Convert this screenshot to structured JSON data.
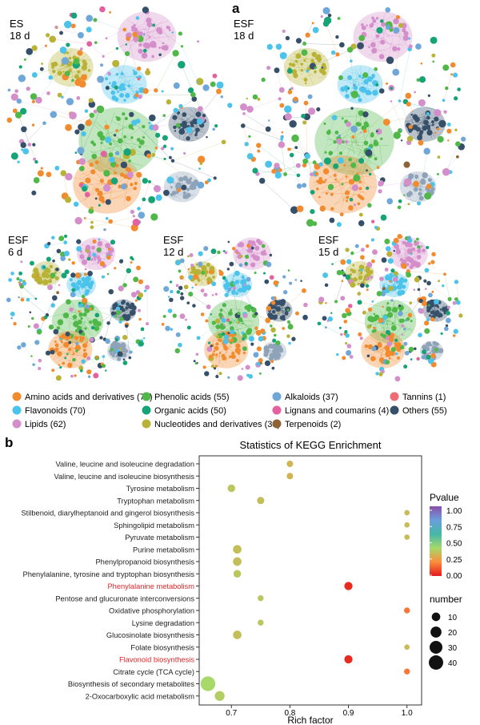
{
  "panel_a": {
    "letter": "a",
    "networks": [
      {
        "line1": "ES",
        "line2": "18 d"
      },
      {
        "line1": "ESF",
        "line2": "18 d"
      },
      {
        "line1": "ESF",
        "line2": "6 d"
      },
      {
        "line1": "ESF",
        "line2": "12 d"
      },
      {
        "line1": "ESF",
        "line2": "15 d"
      }
    ],
    "legend": [
      {
        "label": "Amino acids and derivatives (73)",
        "color": "#f28a2e"
      },
      {
        "label": "Flavonoids (70)",
        "color": "#4cc3ea"
      },
      {
        "label": "Lipids (62)",
        "color": "#d48fcb"
      },
      {
        "label": "Phenolic acids (55)",
        "color": "#4fb848"
      },
      {
        "label": "Organic acids (50)",
        "color": "#16a477"
      },
      {
        "label": "Nucleotides and derivatives (38)",
        "color": "#b8b336"
      },
      {
        "label": "Alkaloids (37)",
        "color": "#6fa7d8"
      },
      {
        "label": "Lignans and coumarins (4)",
        "color": "#e5609f"
      },
      {
        "label": "Terpenoids (2)",
        "color": "#8e6437"
      },
      {
        "label": "Tannins (1)",
        "color": "#ef6b74"
      },
      {
        "label": "Others (55)",
        "color": "#36506a"
      }
    ]
  },
  "panel_b": {
    "letter": "b"
  },
  "chart_data": {
    "type": "scatter",
    "title": "Statistics of KEGG Enrichment",
    "xlabel": "Rich factor",
    "ylabel": "",
    "xlim": [
      0.645,
      1.025
    ],
    "xticks": [
      0.7,
      0.8,
      0.9,
      1.0
    ],
    "xtick_labels": [
      "0.7",
      "0.8",
      "0.9",
      "1.0"
    ],
    "grid": false,
    "highlight_color": "#e0262b",
    "pathways": [
      {
        "name": "Valine, leucine and isoleucine degradation",
        "rich_factor": 0.8,
        "pvalue": 0.3,
        "number": 4,
        "highlight": false
      },
      {
        "name": "Valine, leucine and isoleucine biosynthesis",
        "rich_factor": 0.8,
        "pvalue": 0.3,
        "number": 4,
        "highlight": false
      },
      {
        "name": "Tyrosine metabolism",
        "rich_factor": 0.7,
        "pvalue": 0.35,
        "number": 7,
        "highlight": false
      },
      {
        "name": "Tryptophan metabolism",
        "rich_factor": 0.75,
        "pvalue": 0.33,
        "number": 6,
        "highlight": false
      },
      {
        "name": "Stilbenoid, diarylheptanoid and gingerol biosynthesis",
        "rich_factor": 1.0,
        "pvalue": 0.32,
        "number": 2,
        "highlight": false
      },
      {
        "name": "Sphingolipid metabolism",
        "rich_factor": 1.0,
        "pvalue": 0.32,
        "number": 2,
        "highlight": false
      },
      {
        "name": "Pyruvate metabolism",
        "rich_factor": 1.0,
        "pvalue": 0.32,
        "number": 2,
        "highlight": false
      },
      {
        "name": "Purine metabolism",
        "rich_factor": 0.71,
        "pvalue": 0.33,
        "number": 10,
        "highlight": false
      },
      {
        "name": "Phenylpropanoid biosynthesis",
        "rich_factor": 0.71,
        "pvalue": 0.33,
        "number": 10,
        "highlight": false
      },
      {
        "name": "Phenylalanine, tyrosine and tryptophan biosynthesis",
        "rich_factor": 0.71,
        "pvalue": 0.35,
        "number": 7,
        "highlight": false
      },
      {
        "name": "Phenylalanine metabolism",
        "rich_factor": 0.9,
        "pvalue": 0.03,
        "number": 9,
        "highlight": true
      },
      {
        "name": "Pentose and glucuronate interconversions",
        "rich_factor": 0.75,
        "pvalue": 0.35,
        "number": 3,
        "highlight": false
      },
      {
        "name": "Oxidative phosphorylation",
        "rich_factor": 1.0,
        "pvalue": 0.16,
        "number": 3,
        "highlight": false
      },
      {
        "name": "Lysine degradation",
        "rich_factor": 0.75,
        "pvalue": 0.35,
        "number": 3,
        "highlight": false
      },
      {
        "name": "Glucosinolate biosynthesis",
        "rich_factor": 0.71,
        "pvalue": 0.33,
        "number": 10,
        "highlight": false
      },
      {
        "name": "Folate biosynthesis",
        "rich_factor": 1.0,
        "pvalue": 0.32,
        "number": 2,
        "highlight": false
      },
      {
        "name": "Flavonoid biosynthesis",
        "rich_factor": 0.9,
        "pvalue": 0.03,
        "number": 9,
        "highlight": true
      },
      {
        "name": "Citrate cycle (TCA cycle)",
        "rich_factor": 1.0,
        "pvalue": 0.16,
        "number": 3,
        "highlight": false
      },
      {
        "name": "Biosynthesis of secondary metabolites",
        "rich_factor": 0.66,
        "pvalue": 0.4,
        "number": 42,
        "highlight": false
      },
      {
        "name": "2-Oxocarboxylic acid metabolism",
        "rich_factor": 0.68,
        "pvalue": 0.37,
        "number": 15,
        "highlight": false
      }
    ],
    "color_legend": {
      "title": "Pvalue",
      "range": [
        0,
        1.0
      ],
      "ticks": [
        "1.00",
        "0.75",
        "0.50",
        "0.25",
        "0.00"
      ],
      "colors": [
        "#e31a1c",
        "#fd8d3c",
        "#a6d96a",
        "#45b8a6",
        "#6a9fdb",
        "#8b4fa8"
      ]
    },
    "size_legend": {
      "title": "number",
      "values": [
        10,
        20,
        30,
        40
      ],
      "labels": [
        "10",
        "20",
        "30",
        "40"
      ]
    }
  }
}
